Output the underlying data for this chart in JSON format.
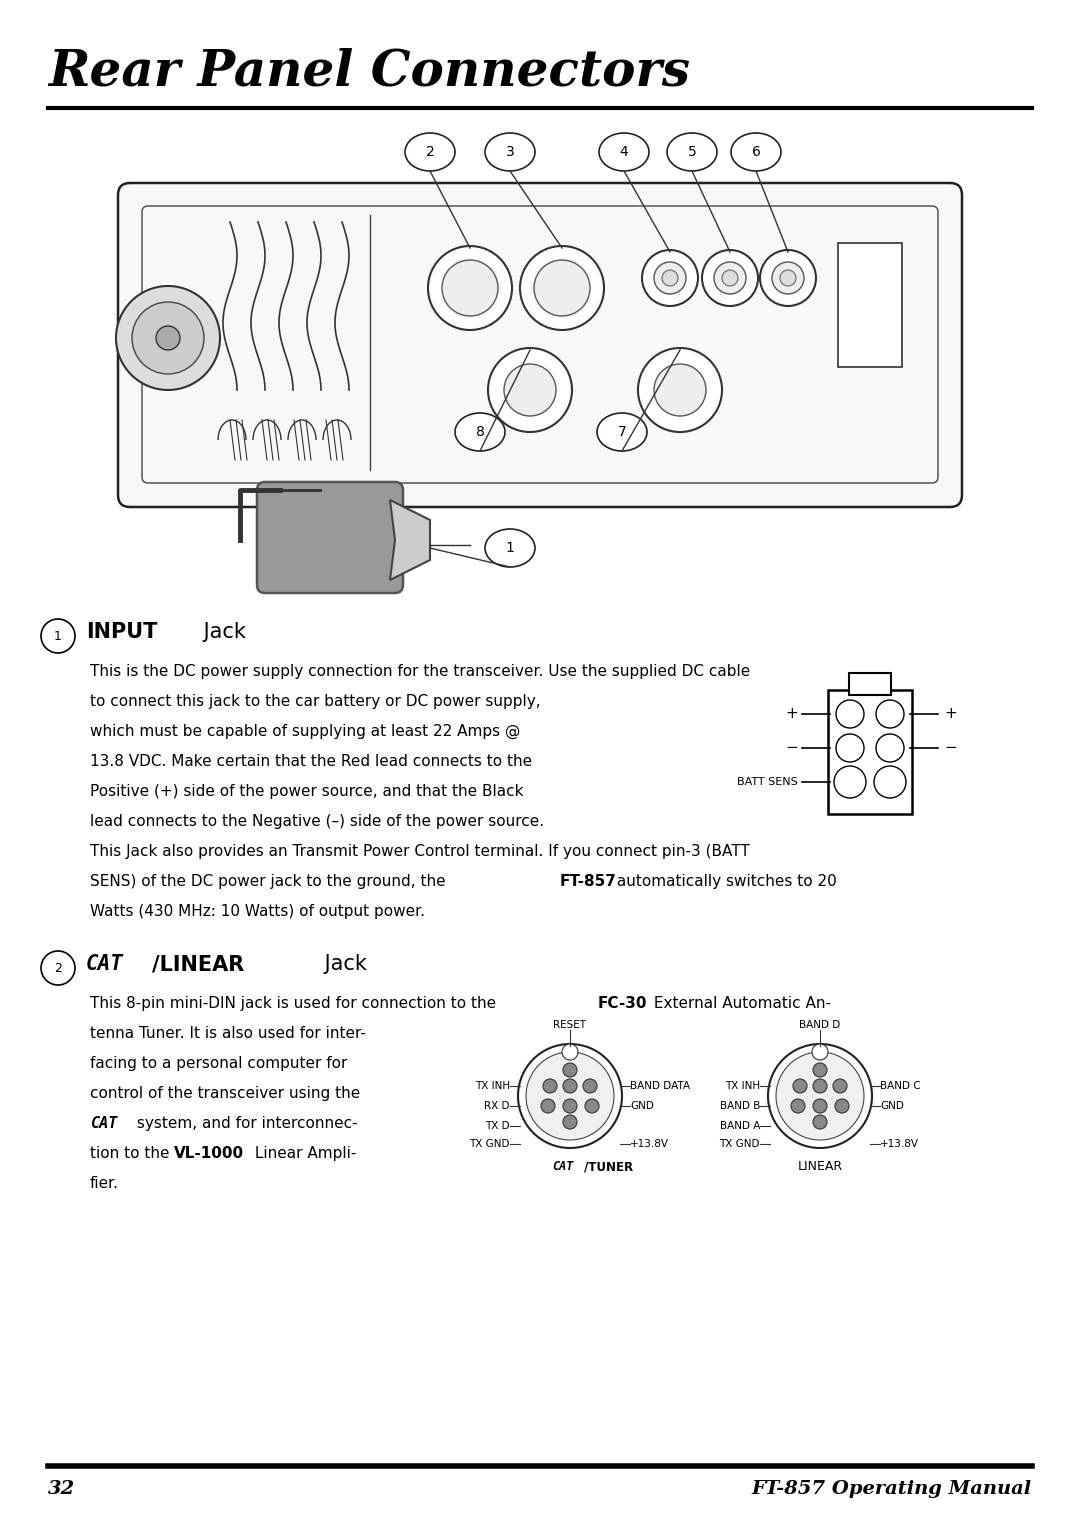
{
  "page_bg": "#ffffff",
  "title_line1": "Rear Panel Connectors",
  "footer_page": "32",
  "footer_manual": "FT-857 Operating Manual",
  "text_color": "#000000",
  "body_fontsize": 11.0,
  "heading_fontsize": 15,
  "title_fontsize": 36
}
